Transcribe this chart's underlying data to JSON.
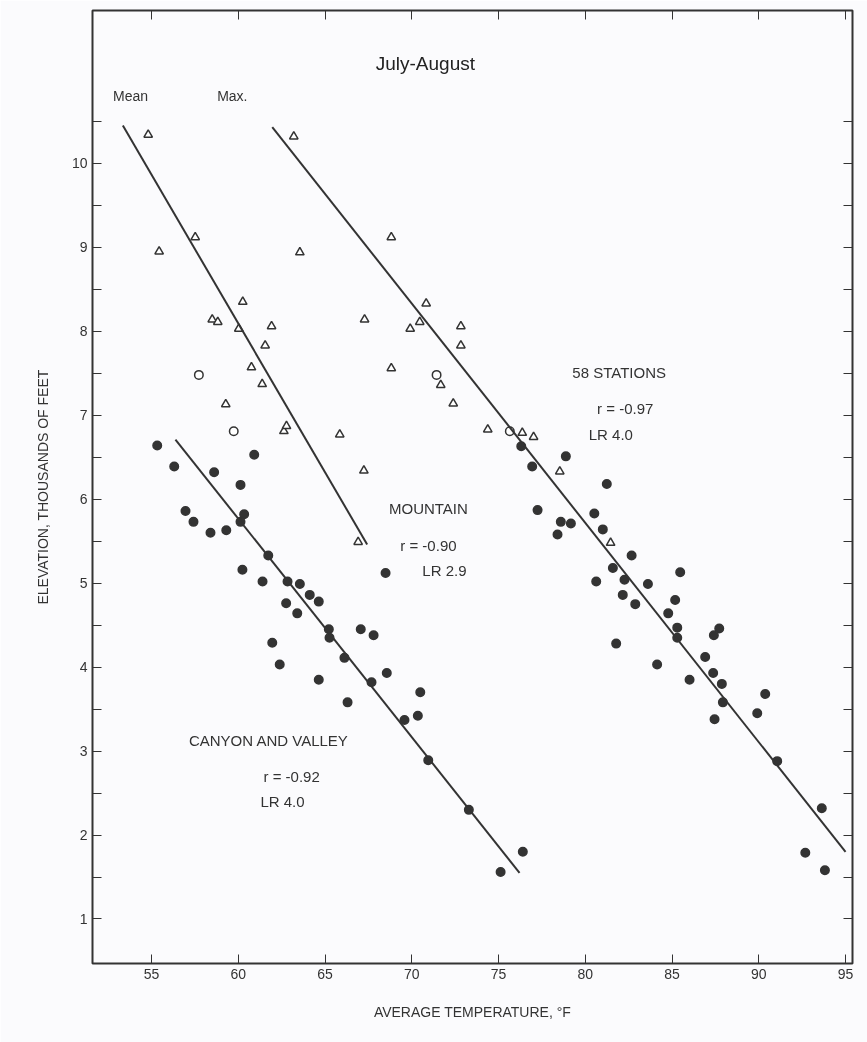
{
  "chart_data": {
    "type": "scatter",
    "title": "July-August",
    "xlabel": "AVERAGE TEMPERATURE, °F",
    "ylabel": "ELEVATION, THOUSANDS OF FEET",
    "xlim": [
      51.6,
      95.4
    ],
    "ylim": [
      0.47,
      11.82
    ],
    "xticks": [
      55,
      60,
      65,
      70,
      75,
      80,
      85,
      90,
      95
    ],
    "yticks": [
      {
        "value": 1,
        "label": "1"
      },
      {
        "value": 1.5,
        "label": null
      },
      {
        "value": 2,
        "label": "2"
      },
      {
        "value": 2.5,
        "label": null
      },
      {
        "value": 3,
        "label": "3"
      },
      {
        "value": 3.5,
        "label": null
      },
      {
        "value": 4,
        "label": "4"
      },
      {
        "value": 4.5,
        "label": null
      },
      {
        "value": 5,
        "label": "5"
      },
      {
        "value": 5.5,
        "label": null
      },
      {
        "value": 6,
        "label": "6"
      },
      {
        "value": 6.5,
        "label": null
      },
      {
        "value": 7,
        "label": "7"
      },
      {
        "value": 7.5,
        "label": null
      },
      {
        "value": 8,
        "label": "8"
      },
      {
        "value": 8.5,
        "label": null
      },
      {
        "value": 9,
        "label": "9"
      },
      {
        "value": 9.5,
        "label": null
      },
      {
        "value": 10,
        "label": "10"
      },
      {
        "value": 10.5,
        "label": null
      }
    ],
    "grid": false,
    "annotations": [
      "Mean",
      "Max.",
      "58 STATIONS",
      "r = -0.97",
      "LR 4.0",
      "MOUNTAIN",
      "r = -0.90",
      "LR 2.9",
      "CANYON AND VALLEY",
      "r = -0.92",
      "LR 4.0"
    ],
    "series": [
      {
        "marker": "triangle",
        "color": "#ffffff",
        "x": [
          54.81,
          55.44,
          57.52,
          60.26,
          58.5,
          58.82,
          60.03,
          61.92,
          61.55,
          60.76,
          61.38,
          59.28,
          62.63,
          62.78,
          65.85,
          67.24,
          66.91
        ],
        "values": [
          10.34,
          8.95,
          9.12,
          8.35,
          8.14,
          8.11,
          8.03,
          8.06,
          7.83,
          7.57,
          7.37,
          7.13,
          6.81,
          6.87,
          6.77,
          6.34,
          5.49
        ]
      },
      {
        "marker": "triangle",
        "color": "#ffffff",
        "x": [
          63.2,
          63.55,
          67.28,
          68.82,
          70.83,
          70.46,
          69.91,
          72.83,
          72.83,
          68.82,
          71.67,
          72.39,
          74.38,
          76.37,
          77.02,
          78.53,
          81.46
        ],
        "values": [
          10.32,
          8.94,
          8.14,
          9.12,
          8.33,
          8.11,
          8.03,
          8.06,
          7.83,
          7.56,
          7.36,
          7.14,
          6.83,
          6.79,
          6.74,
          6.33,
          5.48
        ]
      },
      {
        "marker": "circle",
        "color": "#ffffff",
        "x": [
          57.73,
          59.74
        ],
        "values": [
          7.48,
          6.81
        ]
      },
      {
        "marker": "circle",
        "color": "#ffffff",
        "x": [
          71.43,
          75.65
        ],
        "values": [
          7.48,
          6.81
        ]
      },
      {
        "marker": "circle",
        "color": "#333333",
        "x": [
          55.33,
          56.31,
          58.61,
          60.92,
          60.13,
          56.96,
          57.42,
          58.4,
          59.31,
          60.13,
          60.34,
          61.73,
          60.24,
          61.4,
          62.84,
          63.55,
          64.12,
          64.64,
          62.76,
          63.4,
          65.22,
          65.26,
          67.06,
          67.8,
          61.96,
          62.39,
          66.12,
          67.68,
          68.56,
          64.64,
          66.3,
          70.49,
          69.58,
          70.35,
          70.95,
          73.29,
          68.49,
          75.12,
          76.4
        ],
        "values": [
          6.64,
          6.39,
          6.32,
          6.53,
          6.17,
          5.86,
          5.73,
          5.6,
          5.63,
          5.73,
          5.82,
          5.33,
          5.16,
          5.02,
          5.02,
          4.99,
          4.86,
          4.78,
          4.76,
          4.64,
          4.45,
          4.35,
          4.45,
          4.38,
          4.29,
          4.03,
          4.11,
          3.82,
          3.93,
          3.85,
          3.58,
          3.7,
          3.37,
          3.42,
          2.89,
          2.3,
          5.12,
          1.56,
          1.8
        ]
      },
      {
        "marker": "circle",
        "color": "#333333",
        "x": [
          76.31,
          76.94,
          78.88,
          81.24,
          77.25,
          78.59,
          79.17,
          78.4,
          80.52,
          81.01,
          82.67,
          81.59,
          82.26,
          80.63,
          85.47,
          83.61,
          82.16,
          82.88,
          85.18,
          84.78,
          85.3,
          85.3,
          81.78,
          84.14,
          87.72,
          87.41,
          86.91,
          87.37,
          87.87,
          86.01,
          87.93,
          87.45,
          90.37,
          89.91,
          91.06,
          93.63,
          92.68,
          93.81
        ],
        "values": [
          6.63,
          6.39,
          6.51,
          6.18,
          5.87,
          5.73,
          5.71,
          5.58,
          5.83,
          5.64,
          5.33,
          5.18,
          5.04,
          5.02,
          5.13,
          4.99,
          4.86,
          4.75,
          4.8,
          4.64,
          4.47,
          4.35,
          4.28,
          4.03,
          4.46,
          4.38,
          4.12,
          3.93,
          3.8,
          3.85,
          3.58,
          3.38,
          3.68,
          3.45,
          2.88,
          2.32,
          1.79,
          1.58
        ]
      },
      {
        "type": "line",
        "line_style": "solid",
        "color": "#333333",
        "x": [
          53.35,
          67.43
        ],
        "values": [
          10.45,
          5.46
        ]
      },
      {
        "type": "line",
        "line_style": "solid",
        "color": "#333333",
        "x": [
          61.96,
          95.0
        ],
        "values": [
          10.43,
          1.8
        ]
      },
      {
        "type": "line",
        "line_style": "solid",
        "color": "#333333",
        "x": [
          56.38,
          76.21
        ],
        "values": [
          6.71,
          1.55
        ]
      }
    ]
  }
}
